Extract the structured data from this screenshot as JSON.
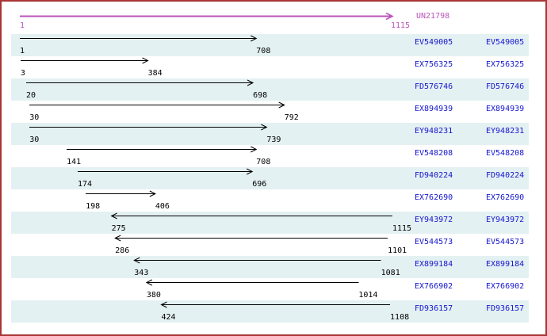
{
  "header": {
    "id": "UN21798",
    "start": "1",
    "end": "1115"
  },
  "colors": {
    "border": "#aa3333",
    "band": "#e4f1f3",
    "unigene": "#bb55bb",
    "accession": "#1515cd",
    "arrow": "#000000"
  },
  "chart_data": {
    "type": "bar",
    "variant": "horizontal-range-alignment",
    "x_range": [
      1,
      1115
    ],
    "grid": false,
    "legend": "none",
    "reference": {
      "id": "UN21798",
      "start": 1,
      "end": 1115,
      "direction": "+"
    },
    "rows": [
      {
        "id": "EV549005",
        "start": 1,
        "end": 708,
        "direction": "+"
      },
      {
        "id": "EX756325",
        "start": 3,
        "end": 384,
        "direction": "+"
      },
      {
        "id": "FD576746",
        "start": 20,
        "end": 698,
        "direction": "+"
      },
      {
        "id": "EX894939",
        "start": 30,
        "end": 792,
        "direction": "+"
      },
      {
        "id": "EY948231",
        "start": 30,
        "end": 739,
        "direction": "+"
      },
      {
        "id": "EV548208",
        "start": 141,
        "end": 708,
        "direction": "+"
      },
      {
        "id": "FD940224",
        "start": 174,
        "end": 696,
        "direction": "+"
      },
      {
        "id": "EX762690",
        "start": 198,
        "end": 406,
        "direction": "+"
      },
      {
        "id": "EY943972",
        "start": 275,
        "end": 1115,
        "direction": "-"
      },
      {
        "id": "EV544573",
        "start": 286,
        "end": 1101,
        "direction": "-"
      },
      {
        "id": "EX899184",
        "start": 343,
        "end": 1081,
        "direction": "-"
      },
      {
        "id": "EX766902",
        "start": 380,
        "end": 1014,
        "direction": "-"
      },
      {
        "id": "FD936157",
        "start": 424,
        "end": 1108,
        "direction": "-"
      }
    ]
  }
}
